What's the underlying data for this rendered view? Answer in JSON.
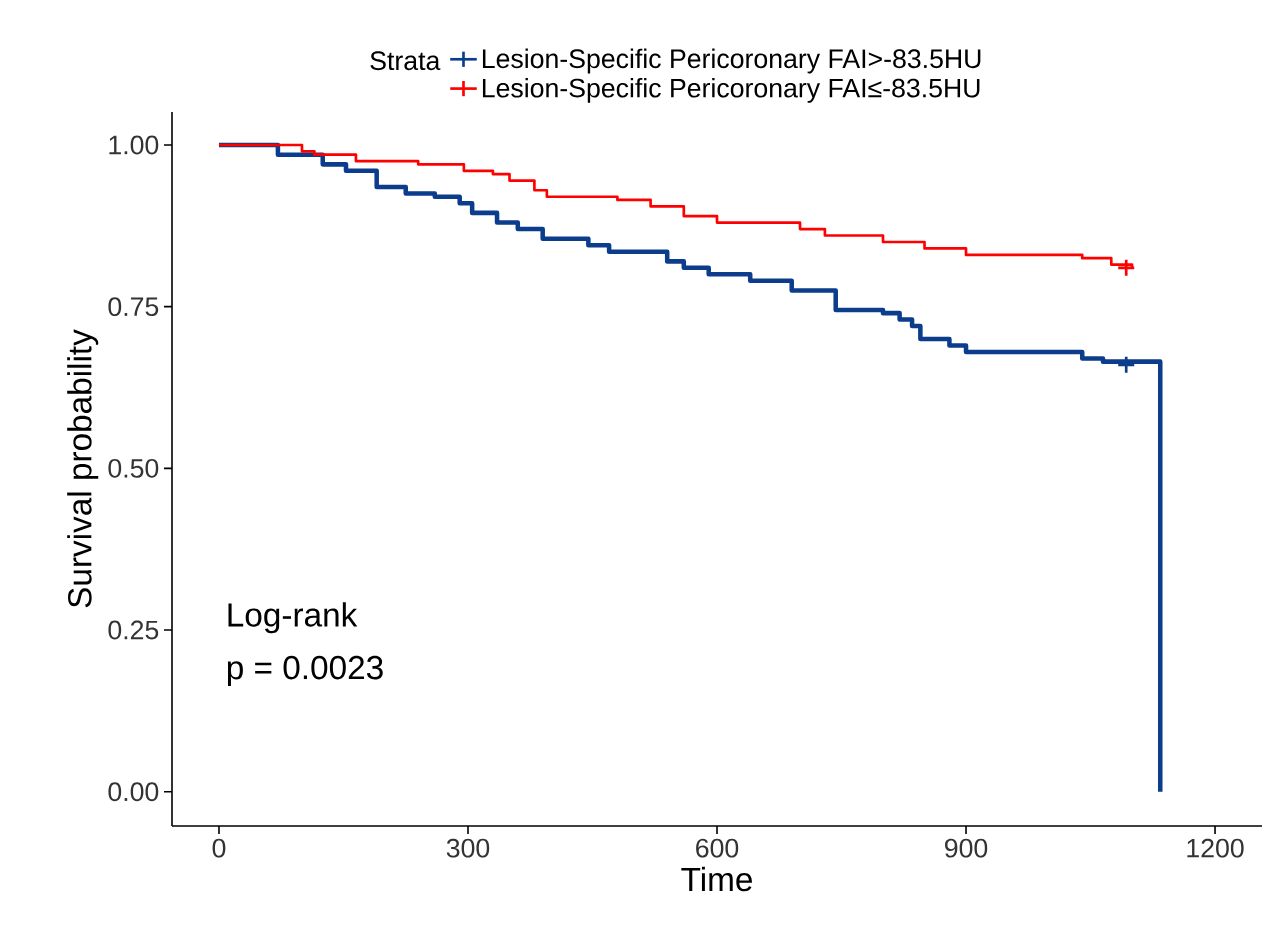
{
  "chart_data": {
    "type": "step",
    "xlabel": "Time",
    "ylabel": "Survival probability",
    "legend_title": "Strata",
    "legend": "top",
    "xlim": [
      -56.6,
      1256.6
    ],
    "ylim": [
      -0.053,
      1.051
    ],
    "xticks": [
      0,
      300,
      600,
      900,
      1200
    ],
    "yticks": [
      {
        "value": 0,
        "label": "0.00"
      },
      {
        "value": 0.25,
        "label": "0.25"
      },
      {
        "value": 0.5,
        "label": "0.50"
      },
      {
        "value": 0.75,
        "label": "0.75"
      },
      {
        "value": 1,
        "label": "1.00"
      }
    ],
    "grid": false,
    "annotations": [
      "Log-rank",
      "p = 0.0023"
    ],
    "series": [
      {
        "name": "Lesion-Specific Pericoronary FAI>-83.5HU",
        "color": "#0b3d8c",
        "x": [
          0,
          71,
          125,
          153,
          190,
          225,
          260,
          290,
          305,
          335,
          360,
          390,
          445,
          470,
          540,
          560,
          590,
          640,
          690,
          743,
          800,
          820,
          835,
          845,
          880,
          900,
          1040,
          1065,
          1134,
          1134
        ],
        "values": [
          1.0,
          0.985,
          0.97,
          0.96,
          0.935,
          0.925,
          0.92,
          0.91,
          0.895,
          0.88,
          0.87,
          0.855,
          0.845,
          0.835,
          0.82,
          0.81,
          0.8,
          0.79,
          0.775,
          0.745,
          0.74,
          0.73,
          0.72,
          0.7,
          0.69,
          0.68,
          0.67,
          0.665,
          0.665,
          0.0
        ]
      },
      {
        "name": "Lesion-Specific Pericoronary FAI≤-83.5HU",
        "color": "#ff0000",
        "x": [
          0,
          100,
          115,
          165,
          240,
          295,
          330,
          350,
          380,
          395,
          480,
          520,
          560,
          600,
          700,
          730,
          800,
          850,
          900,
          1040,
          1075,
          1100
        ],
        "values": [
          1.0,
          0.99,
          0.985,
          0.975,
          0.97,
          0.96,
          0.955,
          0.945,
          0.93,
          0.92,
          0.915,
          0.905,
          0.89,
          0.88,
          0.87,
          0.86,
          0.85,
          0.84,
          0.83,
          0.825,
          0.815,
          0.81
        ]
      },
      {
        "type": "scatter",
        "marker": "cross",
        "color": "#0b3d8c",
        "x": [
          1093
        ],
        "values": [
          0.66
        ]
      },
      {
        "type": "scatter",
        "marker": "cross",
        "color": "#ff0000",
        "x": [
          1093
        ],
        "values": [
          0.81
        ]
      }
    ]
  }
}
